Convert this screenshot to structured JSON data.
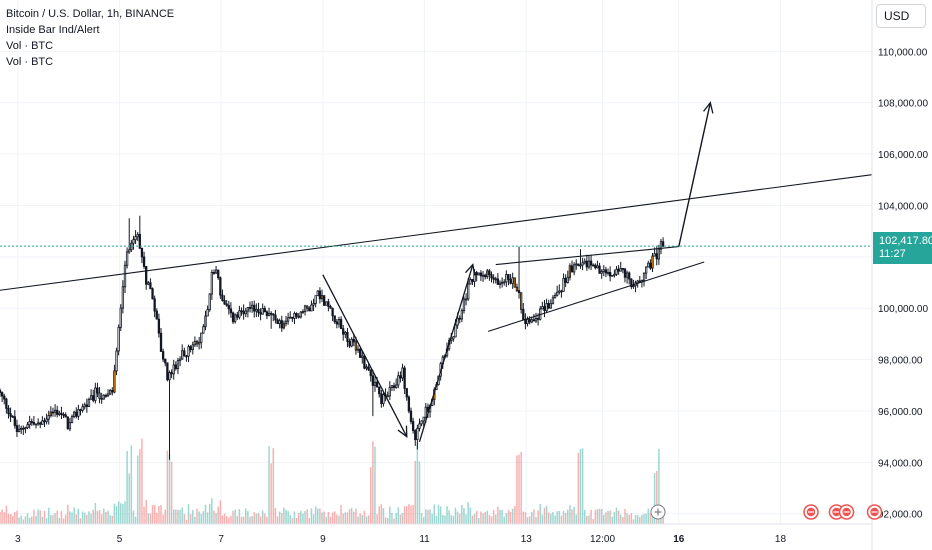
{
  "legend": {
    "title": "Bitcoin / U.S. Dollar, 1h, BINANCE",
    "indicator1": "Inside Bar Ind/Alert",
    "indicator2": "Vol · BTC",
    "indicator3": "Vol · BTC"
  },
  "currency": "USD",
  "last_price": {
    "value": "102,417.80",
    "countdown": "11:27",
    "color": "#26a69a"
  },
  "colors": {
    "up": "#26a69a",
    "down": "#ef5350",
    "candle_body": "#131722",
    "signal_orange": "#ff9800",
    "grid": "#f0f3fa",
    "line": "#131722"
  },
  "icons": {
    "plus": "plus-circle-icon",
    "events": "dividend-event-icon"
  },
  "chart_data": {
    "type": "candlestick",
    "symbol": "BTCUSD",
    "interval": "1h",
    "ylim": [
      91600,
      112000
    ],
    "yticks": [
      92000,
      94000,
      96000,
      98000,
      100000,
      102000,
      104000,
      106000,
      108000,
      110000
    ],
    "ytick_labels": [
      "92,000.00",
      "94,000.00",
      "96,000.00",
      "98,000.00",
      "100,000.00",
      "102,000.00",
      "104,000.00",
      "106,000.00",
      "108,000.00",
      "110,000.00"
    ],
    "xticks": [
      {
        "day": 3,
        "label": "3"
      },
      {
        "day": 5,
        "label": "5"
      },
      {
        "day": 7,
        "label": "7"
      },
      {
        "day": 9,
        "label": "9"
      },
      {
        "day": 11,
        "label": "11"
      },
      {
        "day": 13,
        "label": "13"
      },
      {
        "day": 14.5,
        "label": "12:00"
      },
      {
        "day": 16,
        "label": "16",
        "bold": true
      },
      {
        "day": 18,
        "label": "18"
      }
    ],
    "xlim_days": [
      2.65,
      19.8
    ],
    "last_price": 102417.8,
    "path_anchors": [
      [
        2.65,
        96800
      ],
      [
        2.85,
        96100
      ],
      [
        3.05,
        95100
      ],
      [
        3.25,
        95600
      ],
      [
        3.45,
        95400
      ],
      [
        3.65,
        95900
      ],
      [
        3.85,
        96000
      ],
      [
        4.05,
        95400
      ],
      [
        4.25,
        96100
      ],
      [
        4.45,
        96300
      ],
      [
        4.6,
        96800
      ],
      [
        4.75,
        96400
      ],
      [
        4.9,
        96800
      ],
      [
        5.0,
        98500
      ],
      [
        5.08,
        100500
      ],
      [
        5.15,
        101800
      ],
      [
        5.3,
        102500
      ],
      [
        5.42,
        102800
      ],
      [
        5.55,
        101200
      ],
      [
        5.7,
        100500
      ],
      [
        5.85,
        98500
      ],
      [
        6.0,
        97200
      ],
      [
        6.2,
        98000
      ],
      [
        6.4,
        98400
      ],
      [
        6.6,
        98600
      ],
      [
        6.75,
        99800
      ],
      [
        6.85,
        101200
      ],
      [
        6.95,
        101600
      ],
      [
        7.05,
        100300
      ],
      [
        7.25,
        99600
      ],
      [
        7.5,
        99800
      ],
      [
        7.75,
        100000
      ],
      [
        8.0,
        99700
      ],
      [
        8.25,
        99300
      ],
      [
        8.5,
        99700
      ],
      [
        8.75,
        100000
      ],
      [
        8.95,
        100600
      ],
      [
        9.2,
        99900
      ],
      [
        9.5,
        98900
      ],
      [
        9.8,
        98100
      ],
      [
        10.0,
        97300
      ],
      [
        10.2,
        96400
      ],
      [
        10.4,
        96800
      ],
      [
        10.6,
        97600
      ],
      [
        10.75,
        95800
      ],
      [
        10.85,
        94900
      ],
      [
        11.0,
        95800
      ],
      [
        11.2,
        96400
      ],
      [
        11.35,
        97700
      ],
      [
        11.55,
        98700
      ],
      [
        11.75,
        99800
      ],
      [
        11.95,
        101100
      ],
      [
        12.2,
        101500
      ],
      [
        12.45,
        101000
      ],
      [
        12.65,
        101200
      ],
      [
        12.85,
        100900
      ],
      [
        13.0,
        99600
      ],
      [
        13.15,
        99600
      ],
      [
        13.3,
        99800
      ],
      [
        13.5,
        100200
      ],
      [
        13.7,
        100700
      ],
      [
        13.9,
        101500
      ],
      [
        14.1,
        101600
      ],
      [
        14.3,
        101800
      ],
      [
        14.5,
        101400
      ],
      [
        14.7,
        101300
      ],
      [
        14.9,
        101600
      ],
      [
        15.05,
        101100
      ],
      [
        15.2,
        100800
      ],
      [
        15.35,
        101400
      ],
      [
        15.5,
        101800
      ],
      [
        15.62,
        102100
      ],
      [
        15.7,
        102418
      ]
    ],
    "extremes": [
      {
        "day": 5.2,
        "high": 103500
      },
      {
        "day": 5.42,
        "high": 103600
      },
      {
        "day": 6.0,
        "low": 94100
      },
      {
        "day": 8.0,
        "low": 99200
      },
      {
        "day": 10.0,
        "low": 95800
      },
      {
        "day": 10.85,
        "low": 94500
      },
      {
        "day": 12.85,
        "high": 102400
      },
      {
        "day": 14.05,
        "high": 102300
      },
      {
        "day": 15.55,
        "high": 102400
      }
    ],
    "annotations": {
      "resistance_line": [
        [
          2.65,
          100700
        ],
        [
          19.8,
          105200
        ]
      ],
      "wedge_upper": [
        [
          12.4,
          101700
        ],
        [
          16.0,
          102400
        ]
      ],
      "wedge_lower": [
        [
          12.25,
          99100
        ],
        [
          16.5,
          101800
        ]
      ],
      "zigzag_down": [
        [
          9.0,
          101300
        ],
        [
          10.65,
          95000
        ]
      ],
      "zigzag_up": [
        [
          10.9,
          94800
        ],
        [
          11.95,
          101700
        ]
      ],
      "projection_arrow": [
        [
          16.0,
          102400
        ],
        [
          16.62,
          108000
        ]
      ]
    },
    "volume_events_days": [
      18.6,
      19.1,
      19.3,
      19.85
    ]
  }
}
